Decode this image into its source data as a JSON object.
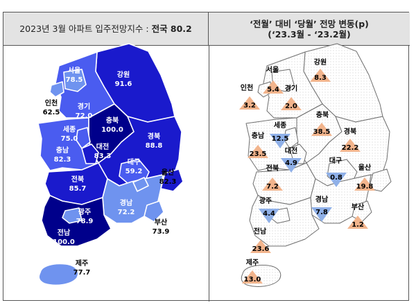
{
  "header_left": {
    "prefix": "2023년 3월 아파트 입주전망지수 : ",
    "value": "전국 80.2"
  },
  "header_right": {
    "line1": "‘전월’ 대비 ‘당월’ 전망 변동(p)",
    "line2": "(‘23.3월 - ‘23.2월)"
  },
  "colors": {
    "darkest": "#00008b",
    "dark": "#1a1acc",
    "medium": "#4a5cf0",
    "light": "#6f93ef",
    "lightest": "#9ec0f4",
    "up": "#f2b48c",
    "down": "#8fb0e8",
    "dots": "#bfbfbf"
  },
  "left_map": {
    "regions": [
      {
        "name": "서울",
        "value": "78.5"
      },
      {
        "name": "인천",
        "value": "62.5"
      },
      {
        "name": "경기",
        "value": "72.0"
      },
      {
        "name": "강원",
        "value": "91.6"
      },
      {
        "name": "충북",
        "value": "100.0"
      },
      {
        "name": "세종",
        "value": "75.0"
      },
      {
        "name": "대전",
        "value": "83.3"
      },
      {
        "name": "충남",
        "value": "82.3"
      },
      {
        "name": "경북",
        "value": "88.8"
      },
      {
        "name": "대구",
        "value": "59.2"
      },
      {
        "name": "울산",
        "value": "82.3"
      },
      {
        "name": "전북",
        "value": "85.7"
      },
      {
        "name": "광주",
        "value": "78.9"
      },
      {
        "name": "전남",
        "value": "100.0"
      },
      {
        "name": "경남",
        "value": "72.2"
      },
      {
        "name": "부산",
        "value": "73.9"
      },
      {
        "name": "제주",
        "value": "77.7"
      }
    ]
  },
  "right_map": {
    "regions": [
      {
        "name": "강원",
        "value": "8.3",
        "direction": "up"
      },
      {
        "name": "서울",
        "value": "5.4",
        "direction": "up"
      },
      {
        "name": "인천",
        "value": "3.2",
        "direction": "up"
      },
      {
        "name": "경기",
        "value": "2.0",
        "direction": "up"
      },
      {
        "name": "충북",
        "value": "38.5",
        "direction": "up"
      },
      {
        "name": "세종",
        "value": "12.5",
        "direction": "down"
      },
      {
        "name": "충남",
        "value": "23.5",
        "direction": "up"
      },
      {
        "name": "대전",
        "value": "4.9",
        "direction": "down"
      },
      {
        "name": "경북",
        "value": "22.2",
        "direction": "up"
      },
      {
        "name": "대구",
        "value": "0.8",
        "direction": "down"
      },
      {
        "name": "전북",
        "value": "7.2",
        "direction": "up"
      },
      {
        "name": "울산",
        "value": "19.8",
        "direction": "up"
      },
      {
        "name": "광주",
        "value": "4.4",
        "direction": "down"
      },
      {
        "name": "경남",
        "value": "7.8",
        "direction": "down"
      },
      {
        "name": "부산",
        "value": "1.2",
        "direction": "up"
      },
      {
        "name": "전남",
        "value": "23.6",
        "direction": "up"
      },
      {
        "name": "제주",
        "value": "13.0",
        "direction": "up"
      }
    ]
  }
}
